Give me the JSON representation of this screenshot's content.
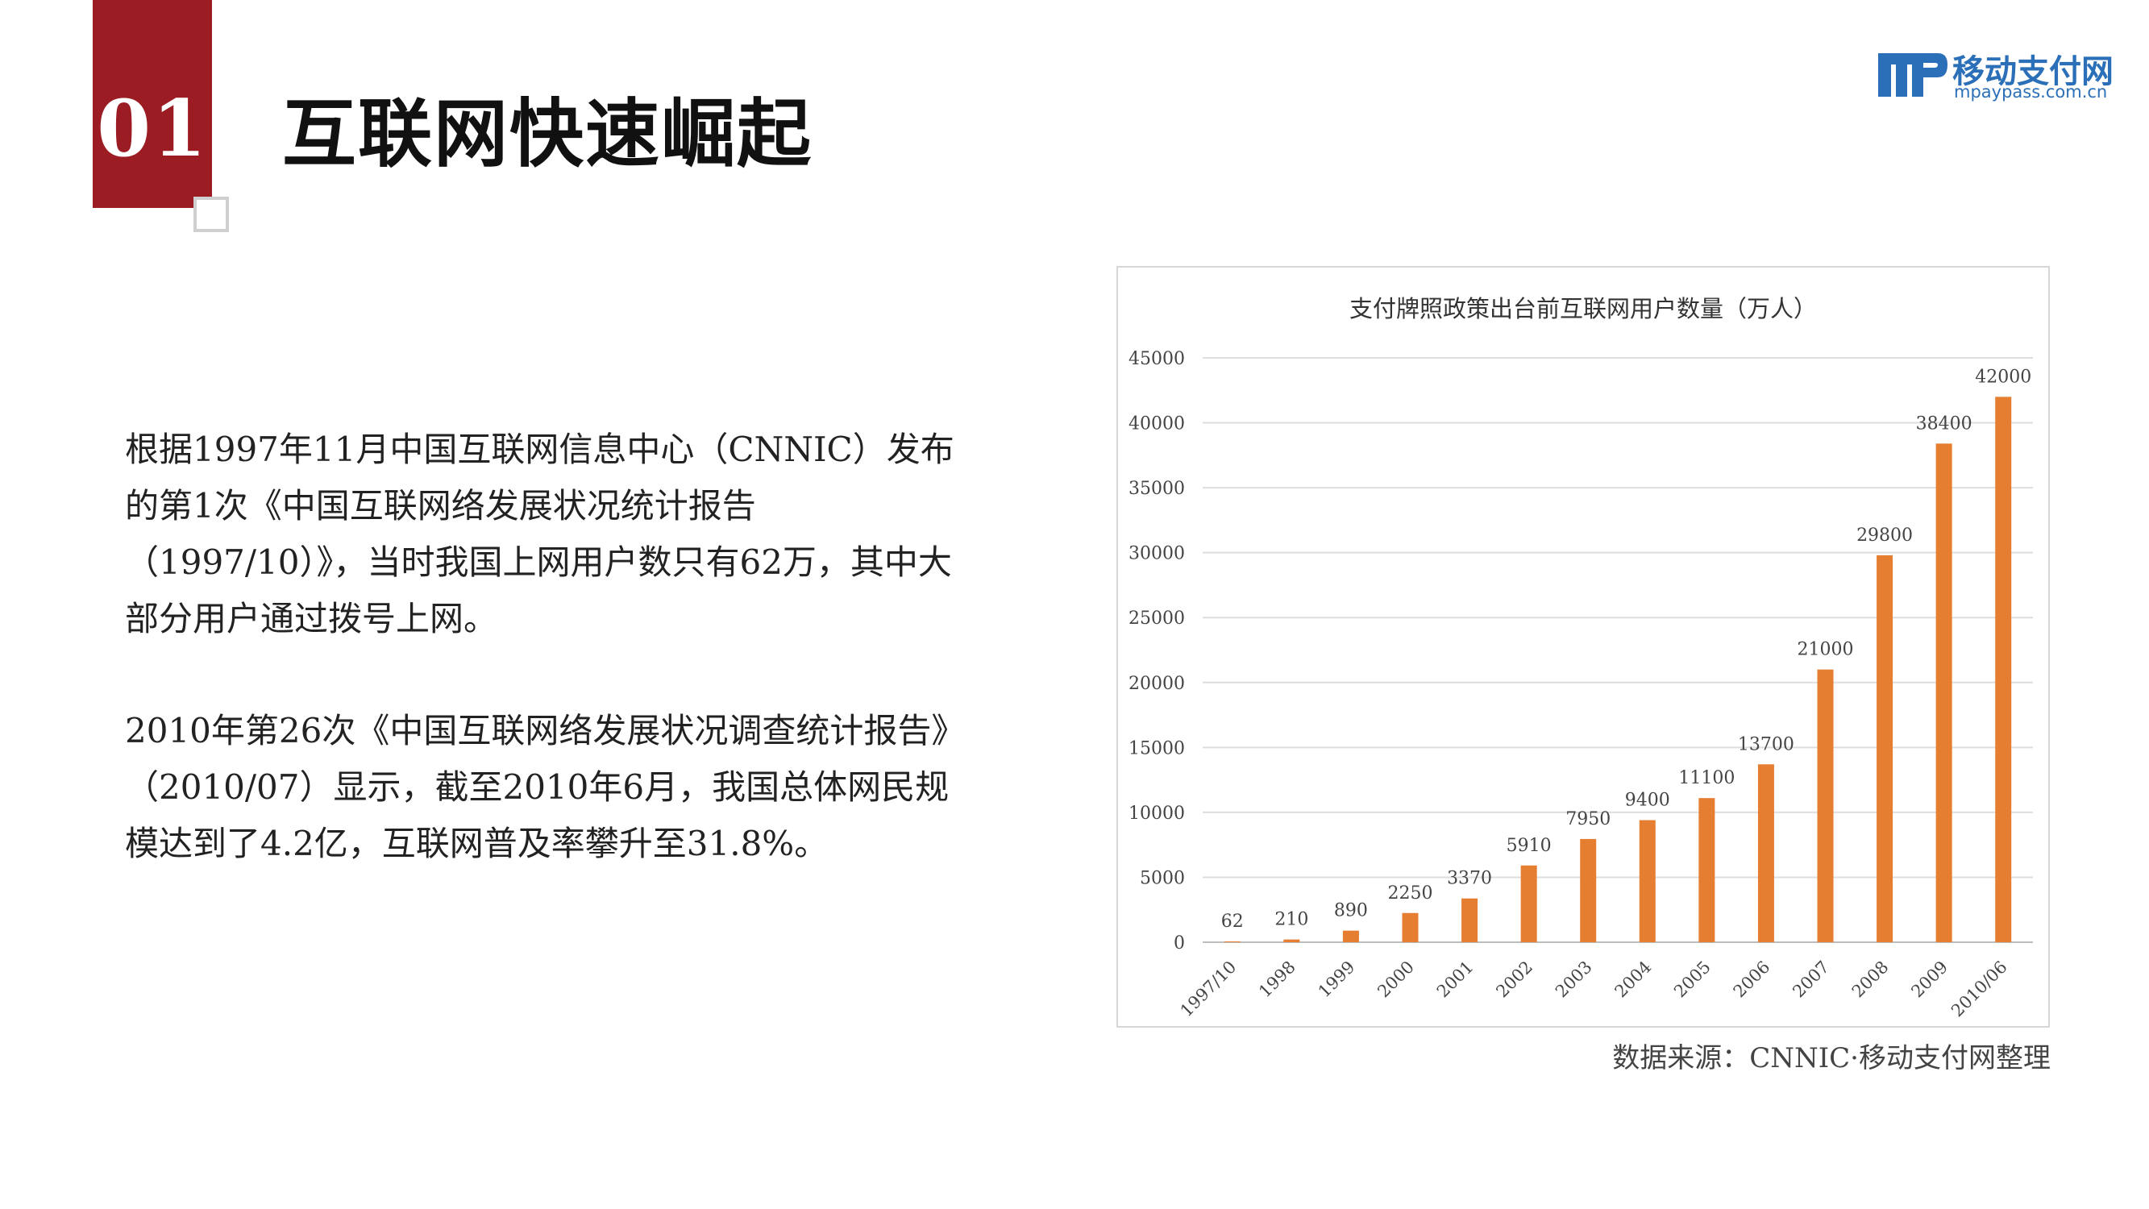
{
  "badge": {
    "number": "01"
  },
  "title": "互联网快速崛起",
  "logo": {
    "name": "移动支付网",
    "url": "mpaypass.com.cn",
    "icon": "mp-logo-icon"
  },
  "paragraphs": [
    "根据1997年11月中国互联网信息中心（CNNIC）发布的第1次《中国互联网络发展状况统计报告（1997/10）》，当时我国上网用户数只有62万，其中大部分用户通过拨号上网。",
    "2010年第26次《中国互联网络发展状况调查统计报告》（2010/07）显示，截至2010年6月，我国总体网民规模达到了4.2亿，互联网普及率攀升至31.8%。"
  ],
  "source": "数据来源：CNNIC·移动支付网整理",
  "colors": {
    "accent": "#9b1c23",
    "bar": "#e67e32",
    "logo": "#2a6fb7"
  },
  "chart_data": {
    "type": "bar",
    "title": "支付牌照政策出台前互联网用户数量（万人）",
    "categories": [
      "1997/10",
      "1998",
      "1999",
      "2000",
      "2001",
      "2002",
      "2003",
      "2004",
      "2005",
      "2006",
      "2007",
      "2008",
      "2009",
      "2010/06"
    ],
    "values": [
      62,
      210,
      890,
      2250,
      3370,
      5910,
      7950,
      9400,
      11100,
      13700,
      21000,
      29800,
      38400,
      42000
    ],
    "yticks": [
      0,
      5000,
      10000,
      15000,
      20000,
      25000,
      30000,
      35000,
      40000,
      45000
    ],
    "ylim": [
      0,
      45000
    ],
    "grid": true,
    "legend": "none",
    "xlabel": "",
    "ylabel": ""
  }
}
